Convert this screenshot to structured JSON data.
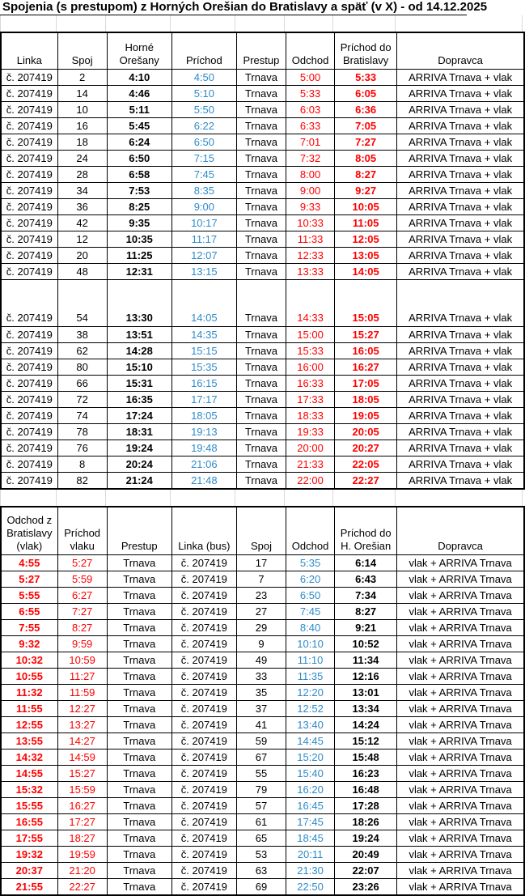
{
  "title": "Spojenia (s prestupom) z Horných Orešian do Bratislavy a späť (v X) - od 14.12.2025",
  "colors": {
    "time_blue": "#2e8bc9",
    "time_red": "#fe0000",
    "table_border": "#000000",
    "gridline_gray": "#d9d9d9"
  },
  "table_departures": {
    "headers": [
      "Linka",
      "Spoj",
      "Horné\nOrešany",
      "Príchod",
      "Prestup",
      "Odchod",
      "Príchod do\nBratislavy",
      "Dopravca"
    ],
    "col_styles": [
      "plain",
      "plain",
      "bold",
      "blue",
      "plain",
      "red",
      "redbold",
      "plain"
    ],
    "tall_row_index": 13,
    "rows": [
      [
        "č. 207419",
        "2",
        "4:10",
        "4:50",
        "Trnava",
        "5:00",
        "5:33",
        "ARRIVA Trnava + vlak"
      ],
      [
        "č. 207419",
        "14",
        "4:46",
        "5:10",
        "Trnava",
        "5:33",
        "6:05",
        "ARRIVA Trnava + vlak"
      ],
      [
        "č. 207419",
        "10",
        "5:11",
        "5:50",
        "Trnava",
        "6:03",
        "6:36",
        "ARRIVA Trnava + vlak"
      ],
      [
        "č. 207419",
        "16",
        "5:45",
        "6:22",
        "Trnava",
        "6:33",
        "7:05",
        "ARRIVA Trnava + vlak"
      ],
      [
        "č. 207419",
        "18",
        "6:24",
        "6:50",
        "Trnava",
        "7:01",
        "7:27",
        "ARRIVA Trnava + vlak"
      ],
      [
        "č. 207419",
        "24",
        "6:50",
        "7:15",
        "Trnava",
        "7:32",
        "8:05",
        "ARRIVA Trnava + vlak"
      ],
      [
        "č. 207419",
        "28",
        "6:58",
        "7:45",
        "Trnava",
        "8:00",
        "8:27",
        "ARRIVA Trnava + vlak"
      ],
      [
        "č. 207419",
        "34",
        "7:53",
        "8:35",
        "Trnava",
        "9:00",
        "9:27",
        "ARRIVA Trnava + vlak"
      ],
      [
        "č. 207419",
        "36",
        "8:25",
        "9:00",
        "Trnava",
        "9:33",
        "10:05",
        "ARRIVA Trnava + vlak"
      ],
      [
        "č. 207419",
        "42",
        "9:35",
        "10:17",
        "Trnava",
        "10:33",
        "11:05",
        "ARRIVA Trnava + vlak"
      ],
      [
        "č. 207419",
        "12",
        "10:35",
        "11:17",
        "Trnava",
        "11:33",
        "12:05",
        "ARRIVA Trnava + vlak"
      ],
      [
        "č. 207419",
        "20",
        "11:25",
        "12:07",
        "Trnava",
        "12:33",
        "13:05",
        "ARRIVA Trnava + vlak"
      ],
      [
        "č. 207419",
        "48",
        "12:31",
        "13:15",
        "Trnava",
        "13:33",
        "14:05",
        "ARRIVA Trnava + vlak"
      ],
      [
        "č. 207419",
        "54",
        "13:30",
        "14:05",
        "Trnava",
        "14:33",
        "15:05",
        "ARRIVA Trnava + vlak"
      ],
      [
        "č. 207419",
        "38",
        "13:51",
        "14:35",
        "Trnava",
        "15:00",
        "15:27",
        "ARRIVA Trnava + vlak"
      ],
      [
        "č. 207419",
        "62",
        "14:28",
        "15:15",
        "Trnava",
        "15:33",
        "16:05",
        "ARRIVA Trnava + vlak"
      ],
      [
        "č. 207419",
        "80",
        "15:10",
        "15:35",
        "Trnava",
        "16:00",
        "16:27",
        "ARRIVA Trnava + vlak"
      ],
      [
        "č. 207419",
        "66",
        "15:31",
        "16:15",
        "Trnava",
        "16:33",
        "17:05",
        "ARRIVA Trnava + vlak"
      ],
      [
        "č. 207419",
        "72",
        "16:35",
        "17:17",
        "Trnava",
        "17:33",
        "18:05",
        "ARRIVA Trnava + vlak"
      ],
      [
        "č. 207419",
        "74",
        "17:24",
        "18:05",
        "Trnava",
        "18:33",
        "19:05",
        "ARRIVA Trnava + vlak"
      ],
      [
        "č. 207419",
        "78",
        "18:31",
        "19:13",
        "Trnava",
        "19:33",
        "20:05",
        "ARRIVA Trnava + vlak"
      ],
      [
        "č. 207419",
        "76",
        "19:24",
        "19:48",
        "Trnava",
        "20:00",
        "20:27",
        "ARRIVA Trnava + vlak"
      ],
      [
        "č. 207419",
        "8",
        "20:24",
        "21:06",
        "Trnava",
        "21:33",
        "22:05",
        "ARRIVA Trnava + vlak"
      ],
      [
        "č. 207419",
        "82",
        "21:24",
        "21:48",
        "Trnava",
        "22:00",
        "22:27",
        "ARRIVA Trnava + vlak"
      ]
    ]
  },
  "table_returns": {
    "headers": [
      "Odchod z\nBratislavy\n(vlak)",
      "Príchod\nvlaku",
      "Prestup",
      "Linka (bus)",
      "Spoj",
      "Odchod",
      "Príchod do\nH. Orešian",
      "Dopravca"
    ],
    "col_styles": [
      "redbold",
      "red",
      "plain",
      "plain",
      "plain",
      "blue",
      "bold",
      "plain"
    ],
    "rows": [
      [
        "4:55",
        "5:27",
        "Trnava",
        "č. 207419",
        "17",
        "5:35",
        "6:14",
        "vlak + ARRIVA Trnava"
      ],
      [
        "5:27",
        "5:59",
        "Trnava",
        "č. 207419",
        "7",
        "6:20",
        "6:43",
        "vlak + ARRIVA Trnava"
      ],
      [
        "5:55",
        "6:27",
        "Trnava",
        "č. 207419",
        "23",
        "6:50",
        "7:34",
        "vlak + ARRIVA Trnava"
      ],
      [
        "6:55",
        "7:27",
        "Trnava",
        "č. 207419",
        "27",
        "7:45",
        "8:27",
        "vlak + ARRIVA Trnava"
      ],
      [
        "7:55",
        "8:27",
        "Trnava",
        "č. 207419",
        "29",
        "8:40",
        "9:21",
        "vlak + ARRIVA Trnava"
      ],
      [
        "9:32",
        "9:59",
        "Trnava",
        "č. 207419",
        "9",
        "10:10",
        "10:52",
        "vlak + ARRIVA Trnava"
      ],
      [
        "10:32",
        "10:59",
        "Trnava",
        "č. 207419",
        "49",
        "11:10",
        "11:34",
        "vlak + ARRIVA Trnava"
      ],
      [
        "10:55",
        "11:27",
        "Trnava",
        "č. 207419",
        "33",
        "11:35",
        "12:16",
        "vlak + ARRIVA Trnava"
      ],
      [
        "11:32",
        "11:59",
        "Trnava",
        "č. 207419",
        "35",
        "12:20",
        "13:01",
        "vlak + ARRIVA Trnava"
      ],
      [
        "11:55",
        "12:27",
        "Trnava",
        "č. 207419",
        "37",
        "12:52",
        "13:34",
        "vlak + ARRIVA Trnava"
      ],
      [
        "12:55",
        "13:27",
        "Trnava",
        "č. 207419",
        "41",
        "13:40",
        "14:24",
        "vlak + ARRIVA Trnava"
      ],
      [
        "13:55",
        "14:27",
        "Trnava",
        "č. 207419",
        "59",
        "14:45",
        "15:12",
        "vlak + ARRIVA Trnava"
      ],
      [
        "14:32",
        "14:59",
        "Trnava",
        "č. 207419",
        "67",
        "15:20",
        "15:48",
        "vlak + ARRIVA Trnava"
      ],
      [
        "14:55",
        "15:27",
        "Trnava",
        "č. 207419",
        "55",
        "15:40",
        "16:23",
        "vlak + ARRIVA Trnava"
      ],
      [
        "15:32",
        "15:59",
        "Trnava",
        "č. 207419",
        "79",
        "16:20",
        "16:48",
        "vlak + ARRIVA Trnava"
      ],
      [
        "15:55",
        "16:27",
        "Trnava",
        "č. 207419",
        "57",
        "16:45",
        "17:28",
        "vlak + ARRIVA Trnava"
      ],
      [
        "16:55",
        "17:27",
        "Trnava",
        "č. 207419",
        "61",
        "17:45",
        "18:26",
        "vlak + ARRIVA Trnava"
      ],
      [
        "17:55",
        "18:27",
        "Trnava",
        "č. 207419",
        "65",
        "18:45",
        "19:24",
        "vlak + ARRIVA Trnava"
      ],
      [
        "19:32",
        "19:59",
        "Trnava",
        "č. 207419",
        "53",
        "20:11",
        "20:49",
        "vlak + ARRIVA Trnava"
      ],
      [
        "20:37",
        "21:20",
        "Trnava",
        "č. 207419",
        "63",
        "21:30",
        "22:07",
        "vlak + ARRIVA Trnava"
      ],
      [
        "21:55",
        "22:27",
        "Trnava",
        "č. 207419",
        "69",
        "22:50",
        "23:26",
        "vlak + ARRIVA Trnava"
      ]
    ]
  }
}
